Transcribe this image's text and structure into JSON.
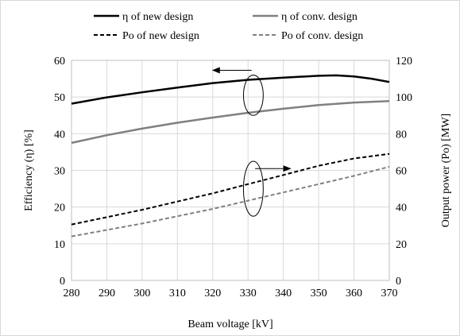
{
  "chart_data": {
    "type": "line",
    "xlabel": "Beam voltage [kV]",
    "ylabel": "Efficiency (η) [%]",
    "y2label": "Output power (Po) [MW]",
    "xlim": [
      280,
      370
    ],
    "ylim": [
      0,
      60
    ],
    "y2lim": [
      0,
      120
    ],
    "x_ticks": [
      "280",
      "290",
      "300",
      "310",
      "320",
      "330",
      "340",
      "350",
      "360",
      "370"
    ],
    "y_ticks": [
      "0",
      "10",
      "20",
      "30",
      "40",
      "50",
      "60"
    ],
    "y2_ticks": [
      "0",
      "20",
      "40",
      "60",
      "80",
      "100",
      "120"
    ],
    "grid": true,
    "legend_position": "top",
    "series": [
      {
        "name": "η of new design",
        "axis": "left",
        "color": "#000000",
        "dash": "solid",
        "width": 2.5,
        "x": [
          280,
          290,
          300,
          310,
          320,
          330,
          340,
          350,
          355,
          360,
          365,
          370
        ],
        "y": [
          48.2,
          49.9,
          51.3,
          52.6,
          53.8,
          54.7,
          55.3,
          55.8,
          55.9,
          55.6,
          55.0,
          54.1
        ]
      },
      {
        "name": "η of conv. design",
        "axis": "left",
        "color": "#808080",
        "dash": "solid",
        "width": 2.5,
        "x": [
          280,
          290,
          300,
          310,
          320,
          330,
          340,
          350,
          360,
          370
        ],
        "y": [
          37.5,
          39.6,
          41.4,
          43.0,
          44.4,
          45.7,
          46.8,
          47.8,
          48.5,
          48.9
        ]
      },
      {
        "name": "Po of new design",
        "axis": "right",
        "color": "#000000",
        "dash": "dashed",
        "width": 2,
        "x": [
          280,
          290,
          300,
          310,
          320,
          330,
          340,
          350,
          360,
          370
        ],
        "y": [
          30.5,
          34.5,
          38.5,
          43.0,
          47.5,
          52.5,
          57.5,
          62.5,
          66.5,
          69.0
        ]
      },
      {
        "name": "Po of conv. design",
        "axis": "right",
        "color": "#808080",
        "dash": "dashed",
        "width": 2,
        "x": [
          280,
          290,
          300,
          310,
          320,
          330,
          340,
          350,
          360,
          370
        ],
        "y": [
          24.0,
          27.5,
          31.0,
          35.0,
          39.0,
          43.5,
          48.0,
          52.5,
          57.0,
          62.0
        ]
      }
    ],
    "annotations": [
      {
        "kind": "ellipse-arrow",
        "target_axis": "left",
        "cx": 331.5,
        "cy": 50.5,
        "rx_units": 2.8,
        "ry_units": 5.5,
        "arrow_from": [
          331,
          57.3
        ],
        "arrow_to": [
          320,
          57.3
        ]
      },
      {
        "kind": "ellipse-arrow",
        "target_axis": "right",
        "cx": 331.5,
        "cy": 50.0,
        "rx_units": 2.8,
        "ry_units": 15.0,
        "arrow_from": [
          332,
          61.0
        ],
        "arrow_to": [
          342,
          61.0
        ]
      }
    ]
  }
}
